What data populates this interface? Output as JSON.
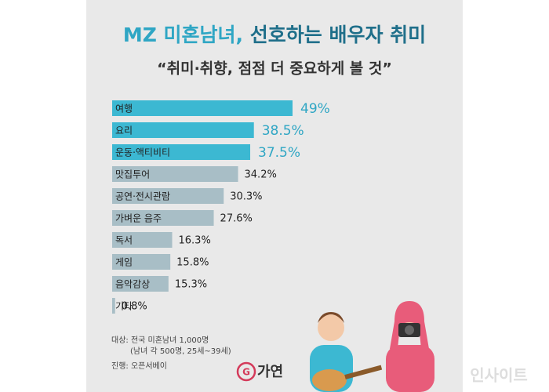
{
  "chart_data": {
    "type": "bar",
    "title": [
      "MZ 미혼남녀,",
      "선호하는 배우자 취미"
    ],
    "subtitle": "“취미·취향, 점점 더 중요하게 볼 것”",
    "categories": [
      "여행",
      "요리",
      "운동·액티비티",
      "맛집투어",
      "공연·전시관람",
      "가벼운 음주",
      "독서",
      "게임",
      "음악감상",
      "기타"
    ],
    "values": [
      49,
      38.5,
      37.5,
      34.2,
      30.3,
      27.6,
      16.3,
      15.8,
      15.3,
      0.8
    ],
    "value_labels": [
      "49%",
      "38.5%",
      "37.5%",
      "34.2%",
      "30.3%",
      "27.6%",
      "16.3%",
      "15.8%",
      "15.3%",
      "0.8%"
    ],
    "colors": [
      "#3cb8d2",
      "#3cb8d2",
      "#3cb8d2",
      "#a8bec6",
      "#a8bec6",
      "#a8bec6",
      "#a8bec6",
      "#a8bec6",
      "#a8bec6",
      "#a8bec6"
    ],
    "notes": [
      "대상: 전국 미혼남녀 1,000명",
      "(남녀 각 500명, 25세~39세)",
      "진행: 오픈서베이"
    ],
    "logo": "가연",
    "watermark": "인사이트"
  }
}
